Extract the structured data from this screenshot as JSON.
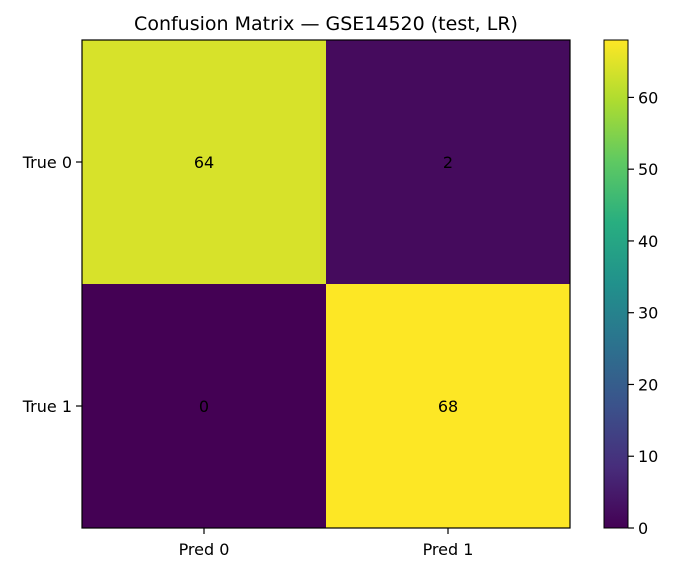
{
  "chart_data": {
    "type": "heatmap",
    "title": "Confusion Matrix — GSE14520 (test, LR)",
    "xlabel": "",
    "ylabel": "",
    "x_categories": [
      "Pred 0",
      "Pred 1"
    ],
    "y_categories": [
      "True 0",
      "True 1"
    ],
    "values": [
      [
        64,
        2
      ],
      [
        0,
        68
      ]
    ],
    "colormap": "viridis",
    "colorbar": {
      "range": [
        0,
        68
      ],
      "ticks": [
        0,
        10,
        20,
        30,
        40,
        50,
        60
      ]
    },
    "grid": false
  }
}
